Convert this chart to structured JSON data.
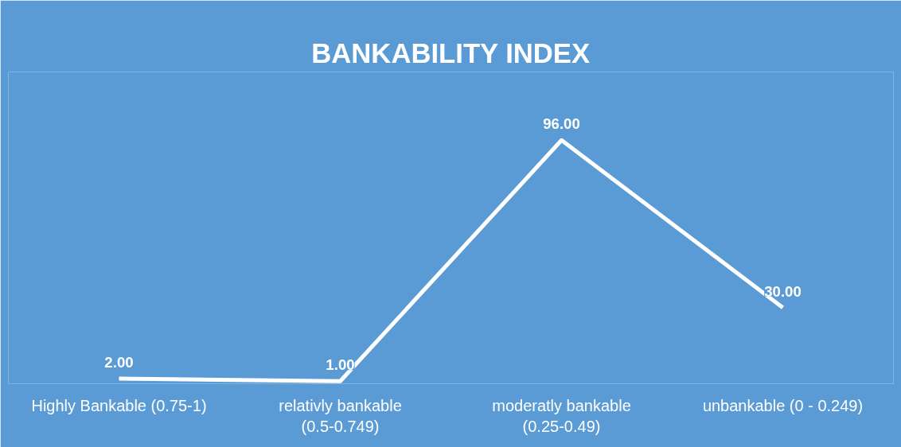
{
  "chart_data": {
    "type": "line",
    "title": "BANKABILITY INDEX",
    "categories": [
      "Highly Bankable (0.75-1)",
      "relativly bankable (0.5-0.749)",
      "moderatly bankable (0.25-0.49)",
      "unbankable (0 - 0.249)"
    ],
    "series": [
      {
        "color": "#ffffff",
        "values": [
          2,
          1,
          96,
          30
        ],
        "value_labels": [
          "2.00",
          "1.00",
          "96.00",
          "30.00"
        ]
      }
    ],
    "grid": false,
    "marker": "none",
    "line_style": "solid"
  }
}
